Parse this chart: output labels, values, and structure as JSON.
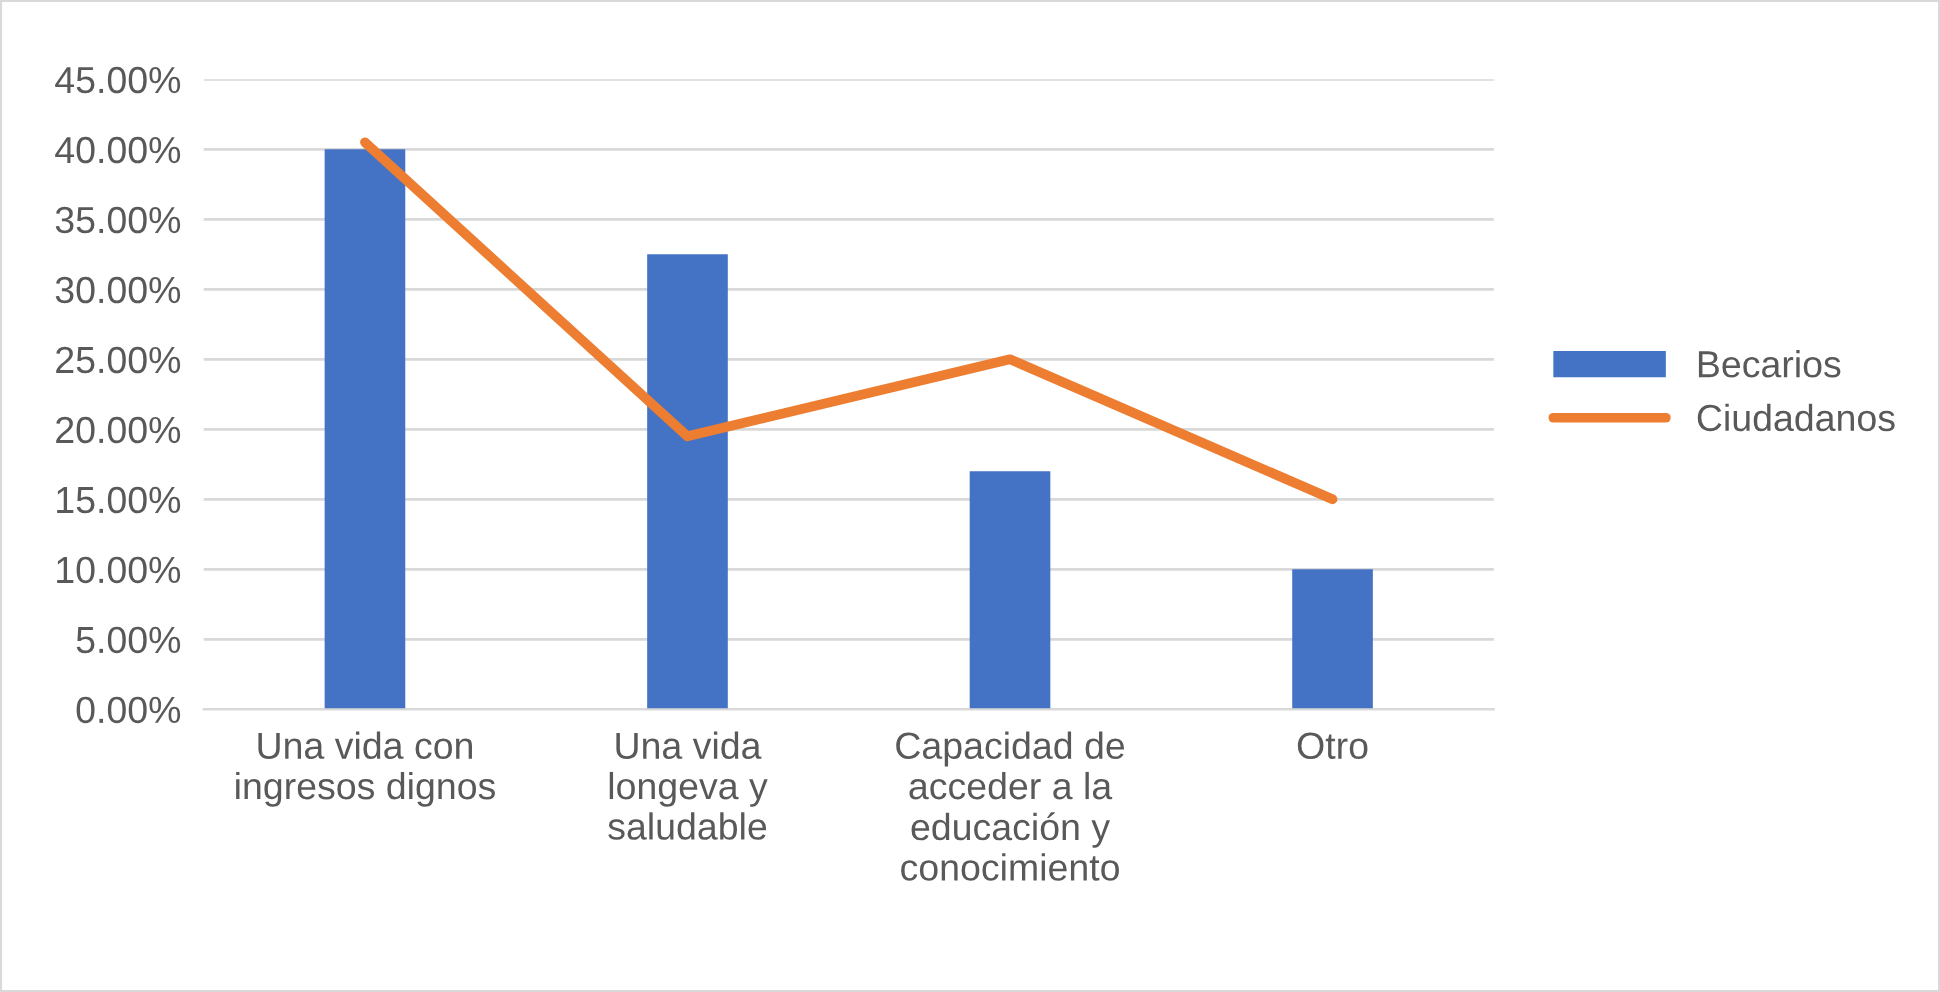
{
  "chart_data": {
    "type": "bar",
    "categories": [
      "Una vida con\ningresos dignos",
      "Una vida\nlongeva y\nsaludable",
      "Capacidad de\nacceder a la\neducación y\nconocimiento",
      "Otro"
    ],
    "series": [
      {
        "name": "Becarios",
        "color": "#4472c4",
        "values": [
          40,
          32.5,
          17,
          10
        ]
      },
      {
        "name": "Ciudadanos",
        "color": "#ed7d31",
        "type": "line",
        "values": [
          40.5,
          19.5,
          25,
          15
        ]
      }
    ],
    "ylim": [
      0,
      45
    ],
    "yticks": [
      {
        "value": 0,
        "label": "0.00%"
      },
      {
        "value": 5,
        "label": "5.00%"
      },
      {
        "value": 10,
        "label": "10.00%"
      },
      {
        "value": 15,
        "label": "15.00%"
      },
      {
        "value": 20,
        "label": "20.00%"
      },
      {
        "value": 25,
        "label": "25.00%"
      },
      {
        "value": 30,
        "label": "30.00%"
      },
      {
        "value": 35,
        "label": "35.00%"
      },
      {
        "value": 40,
        "label": "40.00%"
      },
      {
        "value": 45,
        "label": "45.00%"
      }
    ],
    "grid": "y",
    "legend": "right",
    "marker": "none",
    "line_style": "solid"
  }
}
